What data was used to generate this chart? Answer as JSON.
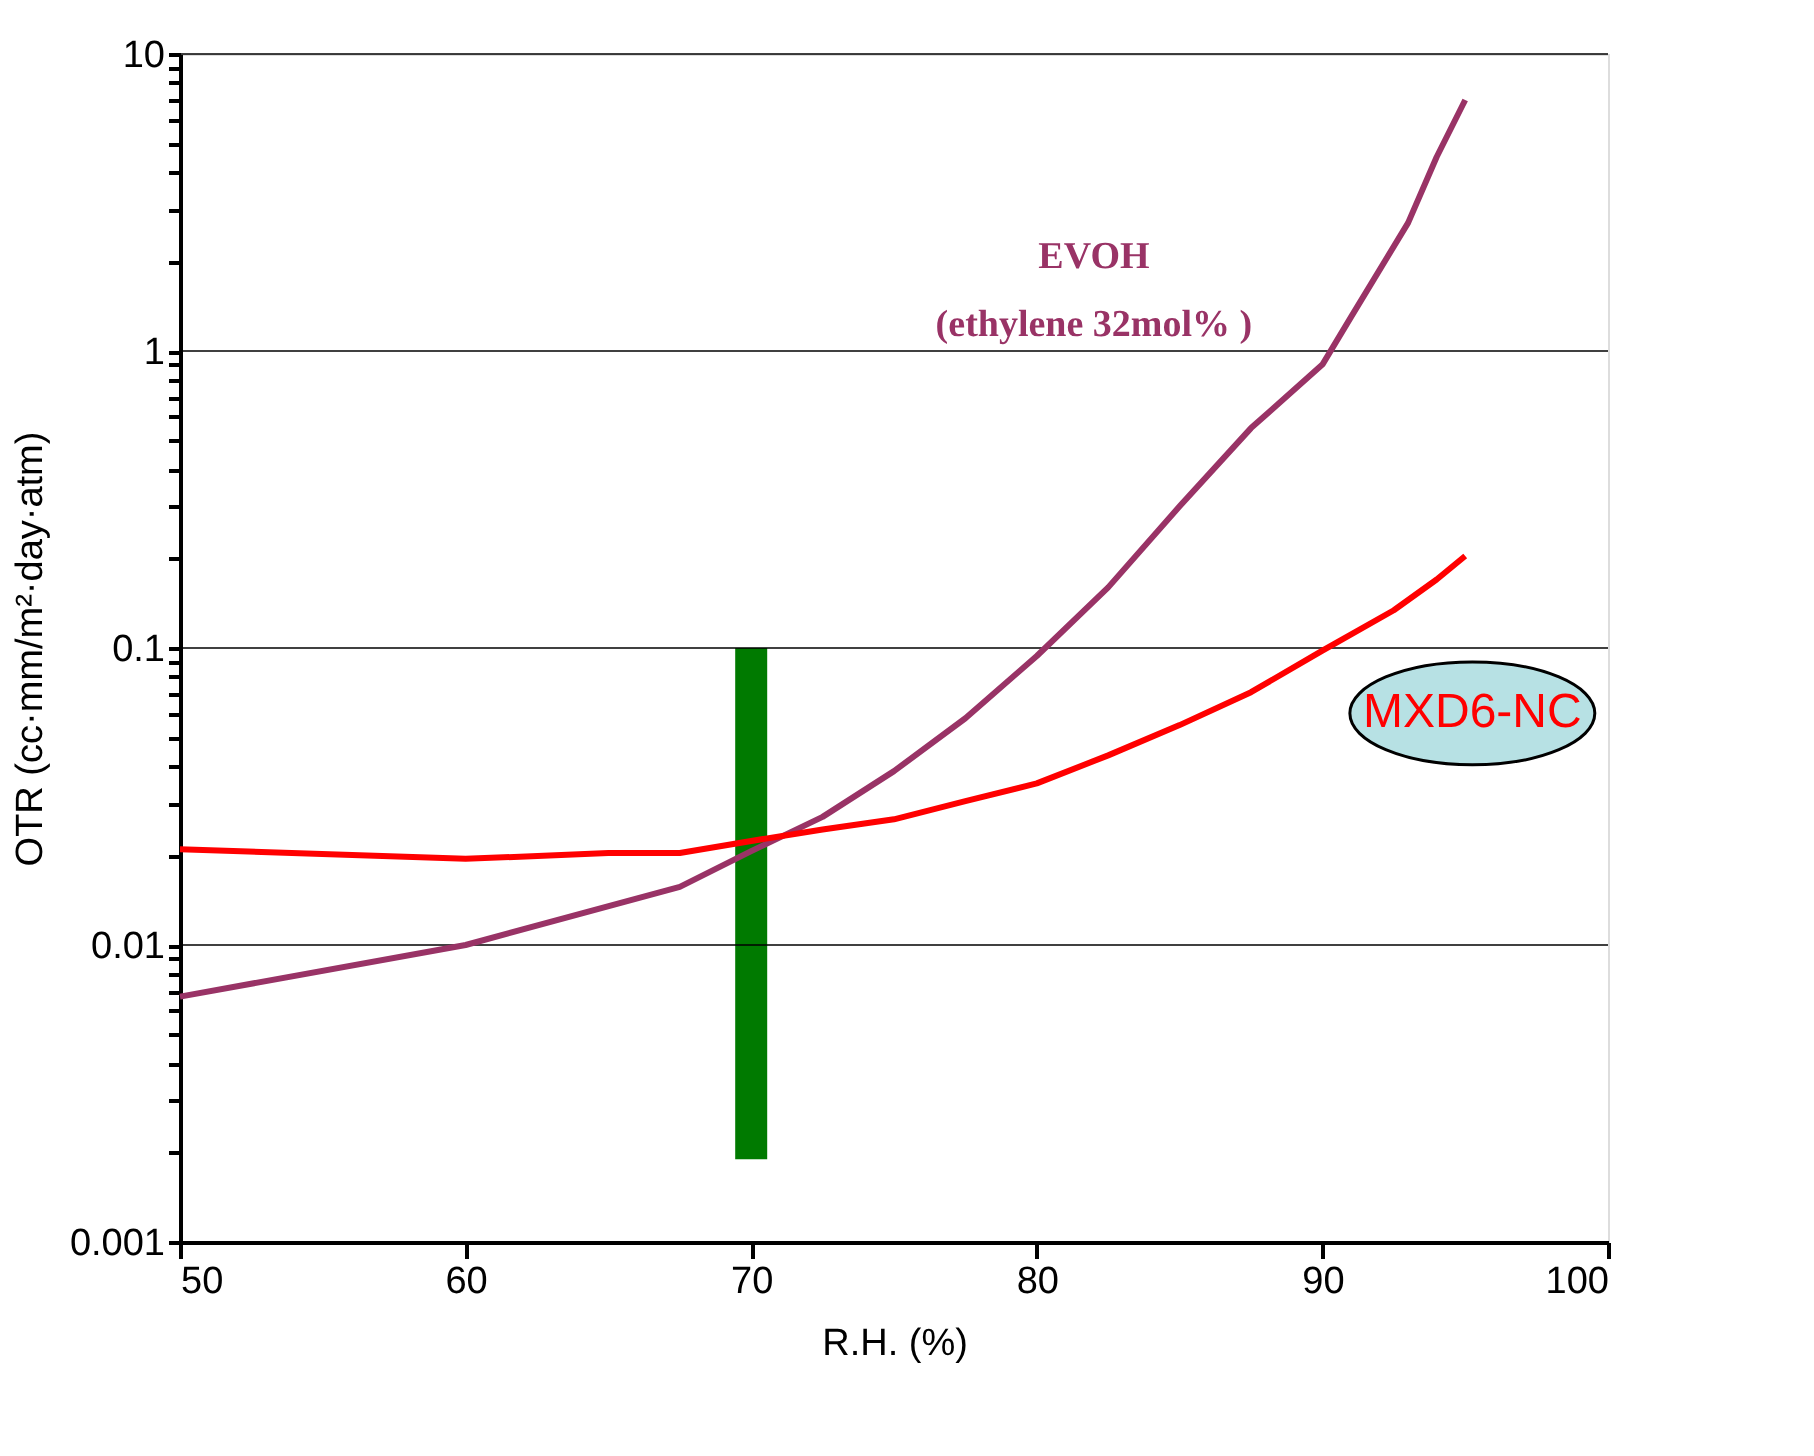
{
  "chart_data": {
    "type": "line",
    "xlabel": "R.H. (%)",
    "ylabel": "OTR (cc·mm/m²·day·atm)",
    "xlim": [
      50,
      100
    ],
    "xticks": [
      50,
      60,
      70,
      80,
      90,
      100
    ],
    "ylim": [
      0.001,
      10
    ],
    "log": "y",
    "yticks": [
      0.001,
      {
        "value": 0.002,
        "label": null
      },
      {
        "value": 0.003,
        "label": null
      },
      {
        "value": 0.004,
        "label": null
      },
      {
        "value": 0.005,
        "label": null
      },
      {
        "value": 0.006,
        "label": null
      },
      {
        "value": 0.007,
        "label": null
      },
      {
        "value": 0.008,
        "label": null
      },
      {
        "value": 0.009,
        "label": null
      },
      0.01,
      {
        "value": 0.02,
        "label": null
      },
      {
        "value": 0.03,
        "label": null
      },
      {
        "value": 0.04,
        "label": null
      },
      {
        "value": 0.05,
        "label": null
      },
      {
        "value": 0.06,
        "label": null
      },
      {
        "value": 0.07,
        "label": null
      },
      {
        "value": 0.08,
        "label": null
      },
      {
        "value": 0.09,
        "label": null
      },
      0.1,
      {
        "value": 0.2,
        "label": null
      },
      {
        "value": 0.3,
        "label": null
      },
      {
        "value": 0.4,
        "label": null
      },
      {
        "value": 0.5,
        "label": null
      },
      {
        "value": 0.6,
        "label": null
      },
      {
        "value": 0.7,
        "label": null
      },
      {
        "value": 0.8,
        "label": null
      },
      {
        "value": 0.9,
        "label": null
      },
      1,
      {
        "value": 2,
        "label": null
      },
      {
        "value": 3,
        "label": null
      },
      {
        "value": 4,
        "label": null
      },
      {
        "value": 5,
        "label": null
      },
      {
        "value": 6,
        "label": null
      },
      {
        "value": 7,
        "label": null
      },
      {
        "value": 8,
        "label": null
      },
      {
        "value": 9,
        "label": null
      },
      10
    ],
    "grid": "y",
    "series": [
      {
        "color": "#993366",
        "x": [
          50,
          60,
          67.5,
          70,
          72.5,
          75,
          77.5,
          80,
          82.5,
          85,
          87.5,
          90,
          91,
          93,
          94,
          95
        ],
        "values": [
          0.0067,
          0.01,
          0.0157,
          0.0207,
          0.027,
          0.0385,
          0.058,
          0.094,
          0.16,
          0.3,
          0.55,
          0.9,
          1.3,
          2.7,
          4.5,
          7.0
        ]
      },
      {
        "color": "#ff0000",
        "x": [
          50,
          60,
          65,
          67.5,
          70,
          72.5,
          75,
          77.5,
          80,
          82.5,
          85,
          87.5,
          90,
          92.5,
          94,
          95
        ],
        "values": [
          0.021,
          0.0195,
          0.0204,
          0.0204,
          0.0224,
          0.0245,
          0.0265,
          0.0305,
          0.035,
          0.0435,
          0.055,
          0.071,
          0.098,
          0.134,
          0.17,
          0.204
        ]
      },
      {
        "type": "bar",
        "color": "#007a00",
        "x": [
          70
        ],
        "base": [
          0.0019
        ],
        "values": [
          0.0981
        ]
      }
    ],
    "annotations": [
      "EVOH\n(ethylene 32mol% )",
      "MXD6-NC"
    ]
  }
}
